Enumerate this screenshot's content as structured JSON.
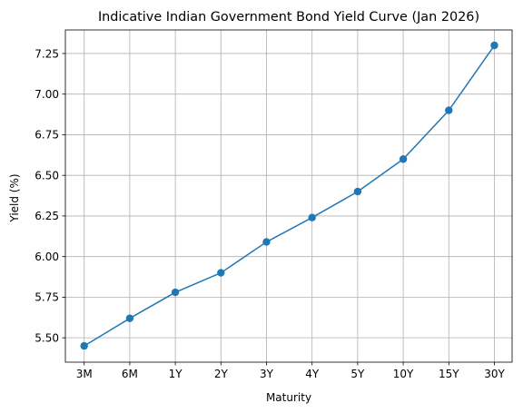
{
  "chart_data": {
    "type": "line",
    "title": "Indicative Indian Government Bond Yield Curve (Jan 2026)",
    "xlabel": "Maturity",
    "ylabel": "Yield (%)",
    "categories": [
      "3M",
      "6M",
      "1Y",
      "2Y",
      "3Y",
      "4Y",
      "5Y",
      "10Y",
      "15Y",
      "30Y"
    ],
    "series": [
      {
        "values": [
          5.45,
          5.62,
          5.78,
          5.9,
          6.09,
          6.24,
          6.4,
          6.6,
          6.9,
          7.3
        ],
        "color": "#1f77b4",
        "marker": "circle"
      }
    ],
    "ylim": [
      5.35,
      7.395
    ],
    "yticks": [
      5.5,
      5.75,
      6.0,
      6.25,
      6.5,
      6.75,
      7.0,
      7.25
    ],
    "ytick_labels": [
      "5.50",
      "5.75",
      "6.00",
      "6.25",
      "6.50",
      "6.75",
      "7.00",
      "7.25"
    ],
    "grid": true
  }
}
